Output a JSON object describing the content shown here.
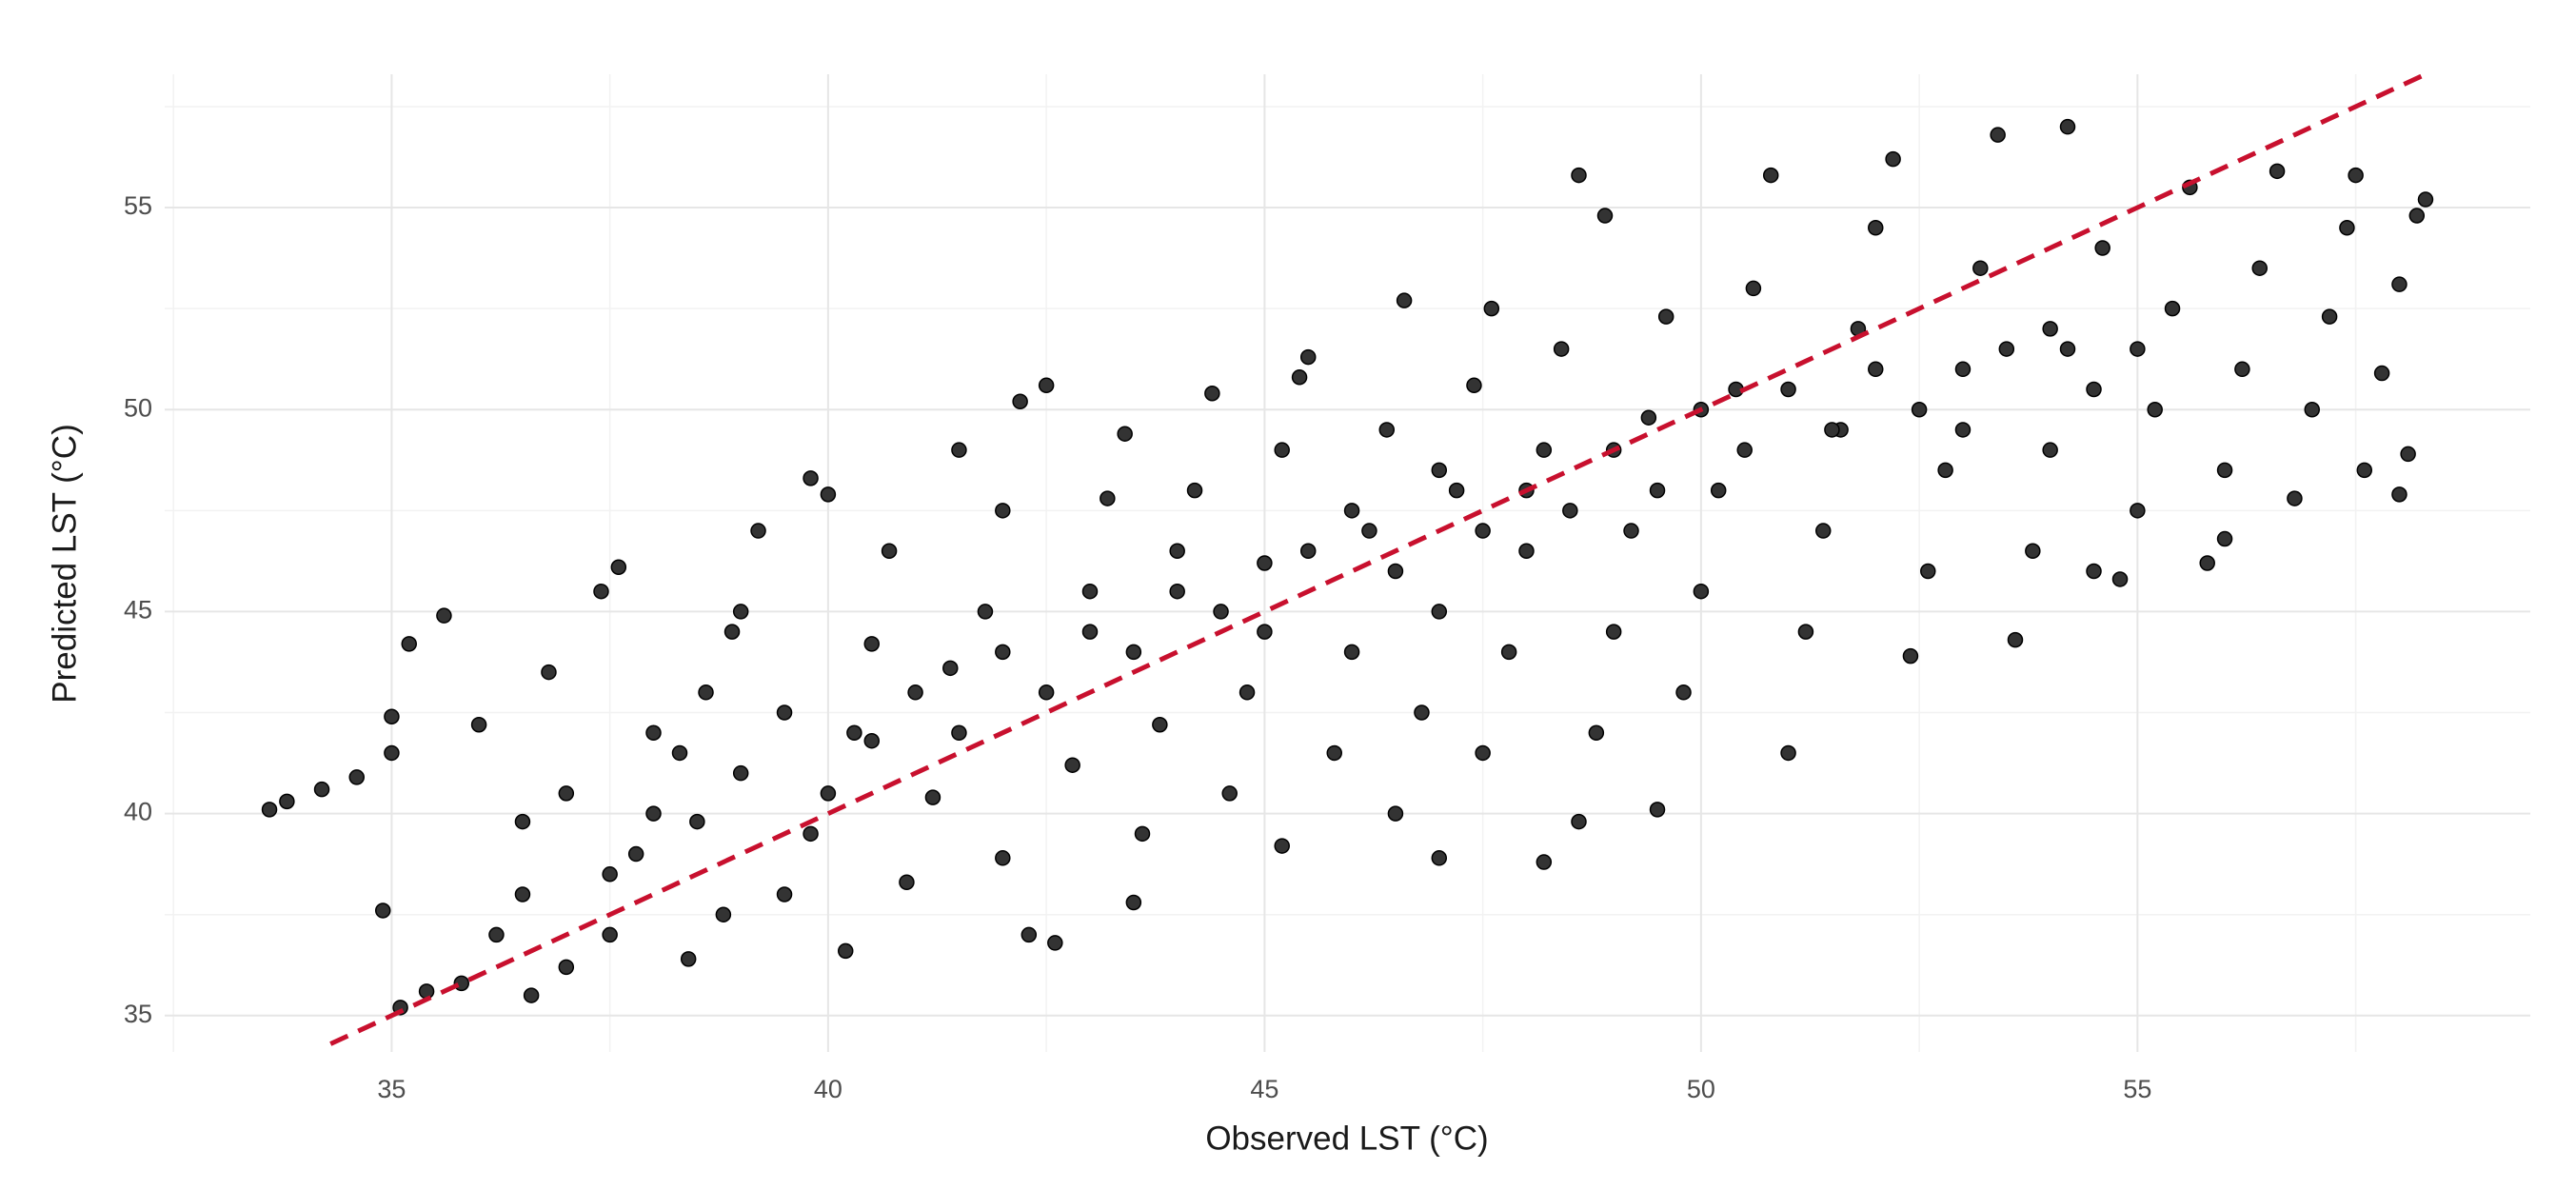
{
  "chart_data": {
    "type": "scatter",
    "x_label": "Observed LST (°C)",
    "y_label": "Predicted LST (°C)",
    "xlim": [
      32.4,
      59.5
    ],
    "ylim": [
      34.1,
      58.3
    ],
    "xticks": [
      35,
      40,
      45,
      50,
      55
    ],
    "yticks": [
      35,
      40,
      45,
      50,
      55
    ],
    "x_minor_ticks": [
      32.5,
      37.5,
      42.5,
      47.5,
      52.5,
      57.5
    ],
    "y_minor_ticks": [
      37.5,
      42.5,
      47.5,
      52.5,
      57.5
    ],
    "grid": true,
    "color": "#333333",
    "edge_color": "#000000",
    "x": [
      33.6,
      33.8,
      34.2,
      34.6,
      35.0,
      35.2,
      35.6,
      35.0,
      34.9,
      35.1,
      35.4,
      35.8,
      36.2,
      36.5,
      36.0,
      36.8,
      37.4,
      37.6,
      37.0,
      36.6,
      37.5,
      38.0,
      38.3,
      38.6,
      38.9,
      39.2,
      38.4,
      38.8,
      39.5,
      39.8,
      39.8,
      40.0,
      40.3,
      40.5,
      40.7,
      40.2,
      40.9,
      41.2,
      41.4,
      41.5,
      41.8,
      42.0,
      42.2,
      42.5,
      42.0,
      42.3,
      42.6,
      42.8,
      43.0,
      43.2,
      43.4,
      43.6,
      43.8,
      44.0,
      44.2,
      44.4,
      43.5,
      44.6,
      44.8,
      45.0,
      45.2,
      45.4,
      45.5,
      45.2,
      45.8,
      46.0,
      46.2,
      46.4,
      46.6,
      46.5,
      46.8,
      47.0,
      47.2,
      47.4,
      47.6,
      47.0,
      47.5,
      47.8,
      48.0,
      48.2,
      48.4,
      48.6,
      48.9,
      48.2,
      48.6,
      48.8,
      49.0,
      49.2,
      49.4,
      49.6,
      49.5,
      49.8,
      50.0,
      50.2,
      50.4,
      50.6,
      50.8,
      51.0,
      51.2,
      51.4,
      51.6,
      51.8,
      52.0,
      52.2,
      52.4,
      52.6,
      52.8,
      53.0,
      53.2,
      53.4,
      53.6,
      53.8,
      54.0,
      54.2,
      54.2,
      54.6,
      54.8,
      55.0,
      55.2,
      55.4,
      55.6,
      55.8,
      56.0,
      56.2,
      56.4,
      56.6,
      56.8,
      57.0,
      57.2,
      57.4,
      57.6,
      57.8,
      58.0,
      58.2,
      58.3,
      58.0,
      58.1,
      57.5,
      56.0,
      54.5,
      37.8,
      38.5,
      39.0,
      39.5,
      40.0,
      40.5,
      41.0,
      41.5,
      42.0,
      42.5,
      43.0,
      43.5,
      44.0,
      44.5,
      45.0,
      45.5,
      46.0,
      46.5,
      47.0,
      47.5,
      48.0,
      48.5,
      49.0,
      49.5,
      50.0,
      50.5,
      51.0,
      51.5,
      52.0,
      52.5,
      53.0,
      53.5,
      54.0,
      54.5,
      55.0,
      36.5,
      37.0,
      37.5,
      38.0,
      39.0
    ],
    "values": [
      40.1,
      40.3,
      40.6,
      40.9,
      41.5,
      44.2,
      44.9,
      42.4,
      37.6,
      35.2,
      35.6,
      35.8,
      37.0,
      39.8,
      42.2,
      43.5,
      45.5,
      46.1,
      36.2,
      35.5,
      38.5,
      40.0,
      41.5,
      43.0,
      44.5,
      47.0,
      36.4,
      37.5,
      38.0,
      39.5,
      48.3,
      47.9,
      42.0,
      44.2,
      46.5,
      36.6,
      38.3,
      40.4,
      43.6,
      49.0,
      45.0,
      47.5,
      50.2,
      50.6,
      38.9,
      37.0,
      36.8,
      41.2,
      44.5,
      47.8,
      49.4,
      39.5,
      42.2,
      45.5,
      48.0,
      50.4,
      37.8,
      40.5,
      43.0,
      46.2,
      49.0,
      50.8,
      51.3,
      39.2,
      41.5,
      44.0,
      47.0,
      49.5,
      52.7,
      40.0,
      42.5,
      45.0,
      48.0,
      50.6,
      52.5,
      38.9,
      41.5,
      44.0,
      46.5,
      49.0,
      51.5,
      55.8,
      54.8,
      38.8,
      39.8,
      42.0,
      44.5,
      47.0,
      49.8,
      52.3,
      40.1,
      43.0,
      45.5,
      48.0,
      50.5,
      53.0,
      55.8,
      41.5,
      44.5,
      47.0,
      49.5,
      52.0,
      54.5,
      56.2,
      43.9,
      46.0,
      48.5,
      51.0,
      53.5,
      56.8,
      44.3,
      46.5,
      49.0,
      51.5,
      57.0,
      54.0,
      45.8,
      47.5,
      50.0,
      52.5,
      55.5,
      46.2,
      48.5,
      51.0,
      53.5,
      55.9,
      47.8,
      50.0,
      52.3,
      54.5,
      48.5,
      50.9,
      53.1,
      54.8,
      55.2,
      47.9,
      48.9,
      55.8,
      46.8,
      46.0,
      39.0,
      39.8,
      41.0,
      42.5,
      40.5,
      41.8,
      43.0,
      42.0,
      44.0,
      43.0,
      45.5,
      44.0,
      46.5,
      45.0,
      44.5,
      46.5,
      47.5,
      46.0,
      48.5,
      47.0,
      48.0,
      47.5,
      49.0,
      48.0,
      50.0,
      49.0,
      50.5,
      49.5,
      51.0,
      50.0,
      49.5,
      51.5,
      52.0,
      50.5,
      51.5,
      38.0,
      40.5,
      37.0,
      42.0,
      45.0
    ],
    "reference_line": {
      "x": [
        34.3,
        58.3
      ],
      "y": [
        34.3,
        58.3
      ],
      "color": "#c8102e",
      "dashed": true
    }
  }
}
